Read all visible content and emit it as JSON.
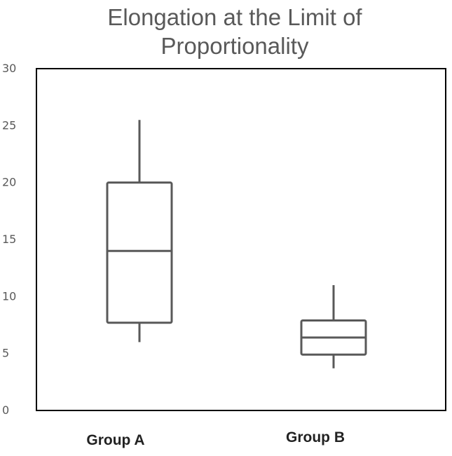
{
  "chart_data": {
    "type": "boxplot",
    "title": [
      "Elongation at the Limit of",
      "Proportionality"
    ],
    "xlabel": "",
    "ylabel": "",
    "ylim": [
      0,
      30
    ],
    "yticks": [
      0,
      5,
      10,
      15,
      20,
      25,
      30
    ],
    "categories": [
      "Group A",
      "Group B"
    ],
    "boxes": [
      {
        "category": "Group A",
        "min": 6,
        "q1": 7.7,
        "median": 14,
        "q3": 20,
        "max": 25.5
      },
      {
        "category": "Group B",
        "min": 3.7,
        "q1": 4.9,
        "median": 6.4,
        "q3": 7.9,
        "max": 11
      }
    ],
    "grid": false,
    "legend": "none"
  },
  "colors": {
    "box_stroke": "#595959",
    "axis": "#000000",
    "text": "#595959"
  }
}
